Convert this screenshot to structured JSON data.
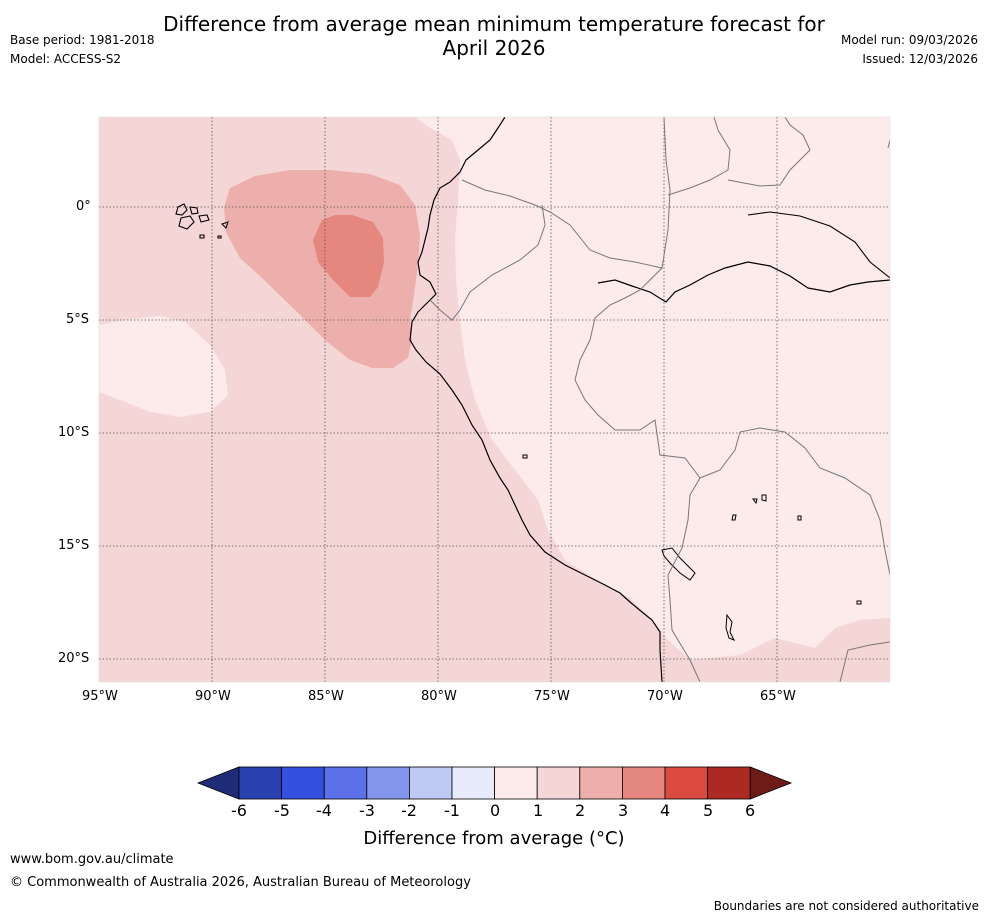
{
  "header": {
    "title_line1": "Difference from average mean minimum temperature forecast for",
    "title_line2": "April 2026",
    "base_period": "Base period: 1981-2018",
    "model": "Model: ACCESS-S2",
    "model_run": "Model run: 09/03/2026",
    "issued": "Issued: 12/03/2026"
  },
  "map": {
    "lat_labels": [
      "0°",
      "5°S",
      "10°S",
      "15°S",
      "20°S"
    ],
    "lon_labels": [
      "95°W",
      "90°W",
      "85°W",
      "80°W",
      "75°W",
      "70°W",
      "65°W"
    ]
  },
  "colorbar": {
    "ticks": [
      "-6",
      "-5",
      "-4",
      "-3",
      "-2",
      "-1",
      "0",
      "1",
      "2",
      "3",
      "4",
      "5",
      "6"
    ],
    "colors": {
      "lt_-6": "#1f2d78",
      "b_-6_-5": "#2840b0",
      "b_-5_-4": "#3350e0",
      "b_-4_-3": "#5c70e8",
      "b_-3_-2": "#8496ec",
      "b_-2_-1": "#c0c8f4",
      "b_-1_0": "#e8ebfb",
      "b_0_1": "#fcebea",
      "b_1_2": "#f5d6d6",
      "b_2_3": "#edafab",
      "b_3_4": "#e5877e",
      "b_4_5": "#da4a3e",
      "b_5_6": "#ac2a22",
      "gt_6": "#6e1a16"
    },
    "label": "Difference from average (°C)"
  },
  "footer": {
    "website": "www.bom.gov.au/climate",
    "copyright": "© Commonwealth of Australia 2026, Australian Bureau of Meteorology",
    "disclaimer": "Boundaries are not considered authoritative"
  }
}
